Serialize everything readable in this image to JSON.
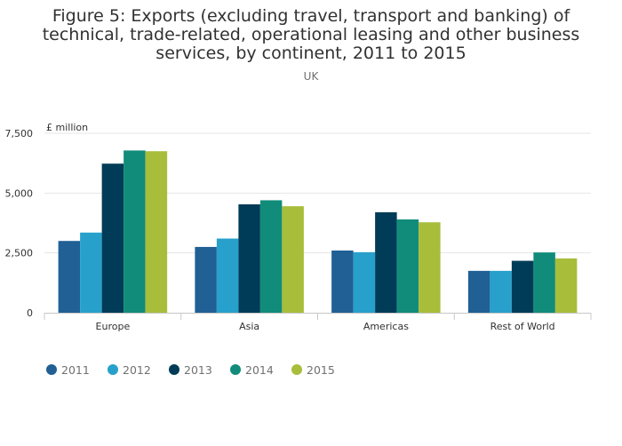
{
  "title": "Figure 5: Exports (excluding travel, transport and banking) of technical, trade-related, operational leasing and other business services, by continent, 2011 to 2015",
  "subtitle": "UK",
  "chart_data": {
    "type": "bar",
    "title": "Figure 5: Exports (excluding travel, transport and banking) of technical, trade-related, operational leasing and other business services, by continent, 2011 to 2015",
    "subtitle": "UK",
    "ylabel": "£ million",
    "xlabel": "",
    "ylim": [
      0,
      7500
    ],
    "yticks": [
      0,
      2500,
      5000,
      7500
    ],
    "ytick_labels": [
      "0",
      "2,500",
      "5,000",
      "7,500"
    ],
    "grid": true,
    "legend": "bottom-left",
    "categories": [
      "Europe",
      "Asia",
      "Americas",
      "Rest of World"
    ],
    "series": [
      {
        "name": "2011",
        "color": "#206095",
        "values": [
          3000,
          2750,
          2600,
          1750
        ]
      },
      {
        "name": "2012",
        "color": "#27a0cc",
        "values": [
          3350,
          3100,
          2530,
          1750
        ]
      },
      {
        "name": "2013",
        "color": "#003c57",
        "values": [
          6230,
          4530,
          4200,
          2170
        ]
      },
      {
        "name": "2014",
        "color": "#118c7b",
        "values": [
          6780,
          4700,
          3900,
          2520
        ]
      },
      {
        "name": "2015",
        "color": "#a8bd3a",
        "values": [
          6750,
          4450,
          3780,
          2270
        ]
      }
    ]
  }
}
